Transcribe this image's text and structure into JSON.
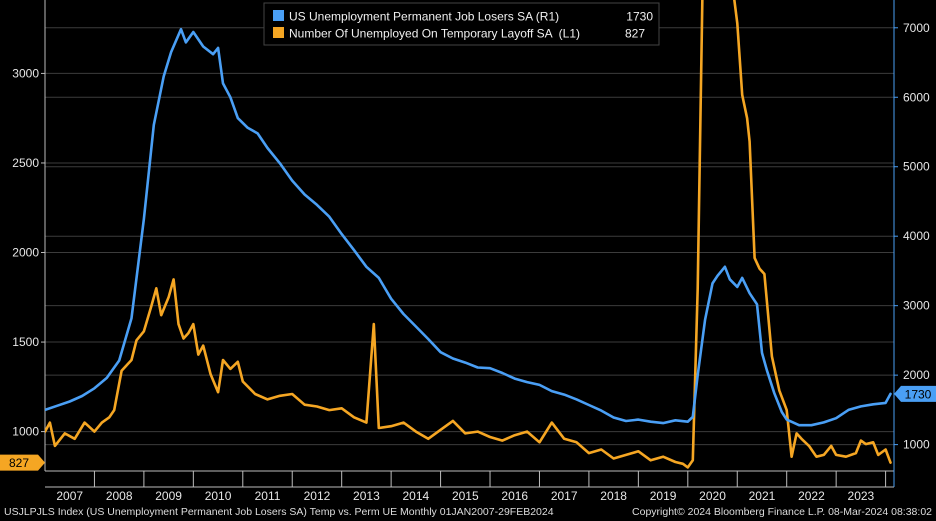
{
  "chart_data": {
    "type": "line",
    "legend": {
      "placement": "top-center",
      "entries": [
        {
          "name": "US Unemployment Permanent Job Losers SA (R1)",
          "last": "1730",
          "color": "#4a9ff5"
        },
        {
          "name": "Number Of Unemployed On Temporary Layoff SA  (L1)",
          "last": "827",
          "color": "#f5a623"
        }
      ]
    },
    "x_labels": [
      "2007",
      "2008",
      "2009",
      "2010",
      "2011",
      "2012",
      "2013",
      "2014",
      "2015",
      "2016",
      "2017",
      "2018",
      "2019",
      "2020",
      "2021",
      "2022",
      "2023"
    ],
    "x_range": [
      2007.0,
      2024.17
    ],
    "left_axis": {
      "ticks": [
        1000,
        1500,
        2000,
        2500,
        3000
      ],
      "range": [
        780,
        3410
      ]
    },
    "right_axis": {
      "ticks": [
        1000,
        2000,
        3000,
        4000,
        5000,
        6000,
        7000
      ],
      "range": [
        620,
        7400
      ]
    },
    "last_value_badges": {
      "left": "827",
      "right": "1730"
    },
    "series": [
      {
        "name": "US Unemployment Permanent Job Losers SA (R1)",
        "axis": "right",
        "color": "#4a9ff5",
        "points": [
          [
            2007.0,
            1500
          ],
          [
            2007.25,
            1560
          ],
          [
            2007.5,
            1620
          ],
          [
            2007.75,
            1700
          ],
          [
            2008.0,
            1810
          ],
          [
            2008.25,
            1960
          ],
          [
            2008.5,
            2210
          ],
          [
            2008.75,
            2820
          ],
          [
            2009.0,
            4250
          ],
          [
            2009.2,
            5600
          ],
          [
            2009.4,
            6300
          ],
          [
            2009.55,
            6650
          ],
          [
            2009.75,
            6980
          ],
          [
            2009.85,
            6790
          ],
          [
            2010.0,
            6940
          ],
          [
            2010.2,
            6730
          ],
          [
            2010.4,
            6620
          ],
          [
            2010.5,
            6710
          ],
          [
            2010.6,
            6200
          ],
          [
            2010.75,
            6000
          ],
          [
            2010.9,
            5700
          ],
          [
            2011.1,
            5560
          ],
          [
            2011.3,
            5480
          ],
          [
            2011.5,
            5270
          ],
          [
            2011.75,
            5050
          ],
          [
            2012.0,
            4800
          ],
          [
            2012.25,
            4600
          ],
          [
            2012.5,
            4450
          ],
          [
            2012.75,
            4280
          ],
          [
            2013.0,
            4030
          ],
          [
            2013.25,
            3800
          ],
          [
            2013.5,
            3560
          ],
          [
            2013.75,
            3400
          ],
          [
            2014.0,
            3100
          ],
          [
            2014.25,
            2880
          ],
          [
            2014.5,
            2700
          ],
          [
            2014.75,
            2520
          ],
          [
            2015.0,
            2330
          ],
          [
            2015.25,
            2240
          ],
          [
            2015.5,
            2180
          ],
          [
            2015.75,
            2110
          ],
          [
            2016.0,
            2100
          ],
          [
            2016.25,
            2030
          ],
          [
            2016.5,
            1950
          ],
          [
            2016.75,
            1900
          ],
          [
            2017.0,
            1860
          ],
          [
            2017.25,
            1770
          ],
          [
            2017.5,
            1720
          ],
          [
            2017.75,
            1650
          ],
          [
            2018.0,
            1570
          ],
          [
            2018.25,
            1490
          ],
          [
            2018.5,
            1390
          ],
          [
            2018.75,
            1340
          ],
          [
            2019.0,
            1360
          ],
          [
            2019.25,
            1330
          ],
          [
            2019.5,
            1310
          ],
          [
            2019.75,
            1350
          ],
          [
            2020.0,
            1330
          ],
          [
            2020.1,
            1400
          ],
          [
            2020.2,
            2000
          ],
          [
            2020.35,
            2800
          ],
          [
            2020.5,
            3320
          ],
          [
            2020.6,
            3430
          ],
          [
            2020.75,
            3560
          ],
          [
            2020.85,
            3380
          ],
          [
            2021.0,
            3270
          ],
          [
            2021.1,
            3400
          ],
          [
            2021.25,
            3180
          ],
          [
            2021.4,
            3020
          ],
          [
            2021.5,
            2320
          ],
          [
            2021.6,
            2070
          ],
          [
            2021.75,
            1740
          ],
          [
            2021.9,
            1470
          ],
          [
            2022.0,
            1360
          ],
          [
            2022.25,
            1280
          ],
          [
            2022.5,
            1280
          ],
          [
            2022.75,
            1320
          ],
          [
            2023.0,
            1380
          ],
          [
            2023.25,
            1500
          ],
          [
            2023.5,
            1550
          ],
          [
            2023.75,
            1580
          ],
          [
            2024.0,
            1600
          ],
          [
            2024.1,
            1730
          ]
        ]
      },
      {
        "name": "Number Of Unemployed On Temporary Layoff SA  (L1)",
        "axis": "left",
        "color": "#f5a623",
        "points": [
          [
            2007.0,
            1000
          ],
          [
            2007.1,
            1050
          ],
          [
            2007.2,
            920
          ],
          [
            2007.4,
            990
          ],
          [
            2007.6,
            960
          ],
          [
            2007.8,
            1050
          ],
          [
            2008.0,
            1000
          ],
          [
            2008.15,
            1050
          ],
          [
            2008.3,
            1080
          ],
          [
            2008.4,
            1120
          ],
          [
            2008.55,
            1340
          ],
          [
            2008.75,
            1400
          ],
          [
            2008.85,
            1510
          ],
          [
            2009.0,
            1560
          ],
          [
            2009.15,
            1700
          ],
          [
            2009.25,
            1800
          ],
          [
            2009.35,
            1650
          ],
          [
            2009.5,
            1750
          ],
          [
            2009.6,
            1850
          ],
          [
            2009.7,
            1600
          ],
          [
            2009.8,
            1520
          ],
          [
            2009.9,
            1550
          ],
          [
            2010.0,
            1600
          ],
          [
            2010.1,
            1430
          ],
          [
            2010.2,
            1480
          ],
          [
            2010.35,
            1320
          ],
          [
            2010.5,
            1220
          ],
          [
            2010.6,
            1400
          ],
          [
            2010.75,
            1350
          ],
          [
            2010.9,
            1390
          ],
          [
            2011.0,
            1280
          ],
          [
            2011.25,
            1210
          ],
          [
            2011.5,
            1180
          ],
          [
            2011.75,
            1200
          ],
          [
            2012.0,
            1210
          ],
          [
            2012.25,
            1150
          ],
          [
            2012.5,
            1140
          ],
          [
            2012.75,
            1120
          ],
          [
            2013.0,
            1130
          ],
          [
            2013.25,
            1080
          ],
          [
            2013.5,
            1050
          ],
          [
            2013.65,
            1600
          ],
          [
            2013.75,
            1020
          ],
          [
            2014.0,
            1030
          ],
          [
            2014.25,
            1050
          ],
          [
            2014.5,
            1000
          ],
          [
            2014.75,
            960
          ],
          [
            2015.0,
            1010
          ],
          [
            2015.25,
            1060
          ],
          [
            2015.5,
            990
          ],
          [
            2015.75,
            1000
          ],
          [
            2016.0,
            970
          ],
          [
            2016.25,
            950
          ],
          [
            2016.5,
            980
          ],
          [
            2016.75,
            1000
          ],
          [
            2017.0,
            940
          ],
          [
            2017.25,
            1050
          ],
          [
            2017.5,
            960
          ],
          [
            2017.75,
            940
          ],
          [
            2018.0,
            880
          ],
          [
            2018.25,
            900
          ],
          [
            2018.5,
            850
          ],
          [
            2018.75,
            870
          ],
          [
            2019.0,
            890
          ],
          [
            2019.25,
            840
          ],
          [
            2019.5,
            860
          ],
          [
            2019.75,
            830
          ],
          [
            2019.9,
            820
          ],
          [
            2020.0,
            800
          ],
          [
            2020.1,
            840
          ],
          [
            2020.2,
            1800
          ],
          [
            2020.3,
            3500
          ],
          [
            2020.4,
            3500
          ],
          [
            2020.5,
            3500
          ],
          [
            2020.6,
            3500
          ],
          [
            2020.7,
            3500
          ],
          [
            2020.8,
            3500
          ],
          [
            2020.9,
            3500
          ],
          [
            2021.0,
            3280
          ],
          [
            2021.1,
            2880
          ],
          [
            2021.2,
            2750
          ],
          [
            2021.25,
            2620
          ],
          [
            2021.35,
            1970
          ],
          [
            2021.45,
            1910
          ],
          [
            2021.55,
            1880
          ],
          [
            2021.7,
            1420
          ],
          [
            2021.85,
            1230
          ],
          [
            2022.0,
            1120
          ],
          [
            2022.1,
            860
          ],
          [
            2022.2,
            990
          ],
          [
            2022.3,
            960
          ],
          [
            2022.45,
            920
          ],
          [
            2022.6,
            860
          ],
          [
            2022.75,
            870
          ],
          [
            2022.9,
            920
          ],
          [
            2023.0,
            870
          ],
          [
            2023.2,
            860
          ],
          [
            2023.4,
            880
          ],
          [
            2023.5,
            950
          ],
          [
            2023.6,
            930
          ],
          [
            2023.75,
            940
          ],
          [
            2023.85,
            870
          ],
          [
            2024.0,
            900
          ],
          [
            2024.1,
            827
          ]
        ]
      }
    ]
  },
  "footer": {
    "left": "USJLPJLS Index (US Unemployment Permanent Job Losers SA) Temp vs. Perm UE  Monthly 01JAN2007-29FEB2024",
    "right": "Copyright© 2024 Bloomberg Finance L.P.  08-Mar-2024 08:38:02"
  }
}
